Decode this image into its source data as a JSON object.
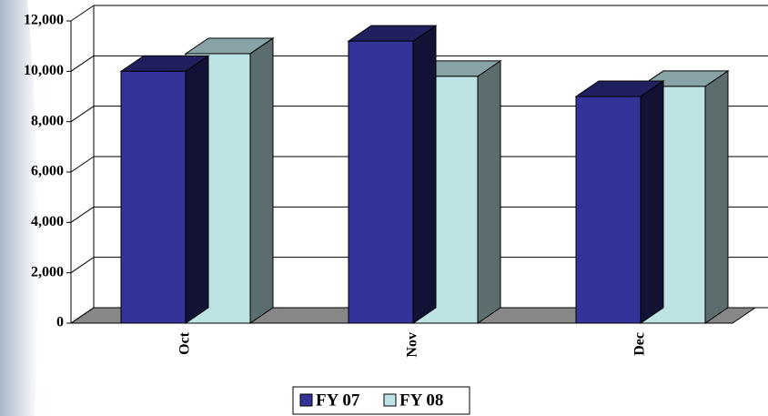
{
  "chart_data": {
    "type": "bar3d",
    "categories": [
      "Oct",
      "Nov",
      "Dec"
    ],
    "series": [
      {
        "name": "FY 07",
        "color": "#333399",
        "values": [
          10000,
          11200,
          9000
        ]
      },
      {
        "name": "FY 08",
        "color": "#bde3e5",
        "values": [
          10700,
          9800,
          9400
        ]
      }
    ],
    "ylim": [
      0,
      12000
    ],
    "yticks": [
      0,
      {
        "value": 2000,
        "label": "2,000"
      },
      {
        "value": 4000,
        "label": "4,000"
      },
      {
        "value": 6000,
        "label": "6,000"
      },
      {
        "value": 8000,
        "label": "8,000"
      },
      {
        "value": 10000,
        "label": "10,000"
      },
      {
        "value": 12000,
        "label": "12,000"
      }
    ],
    "grid": true,
    "legend": "bottom"
  }
}
